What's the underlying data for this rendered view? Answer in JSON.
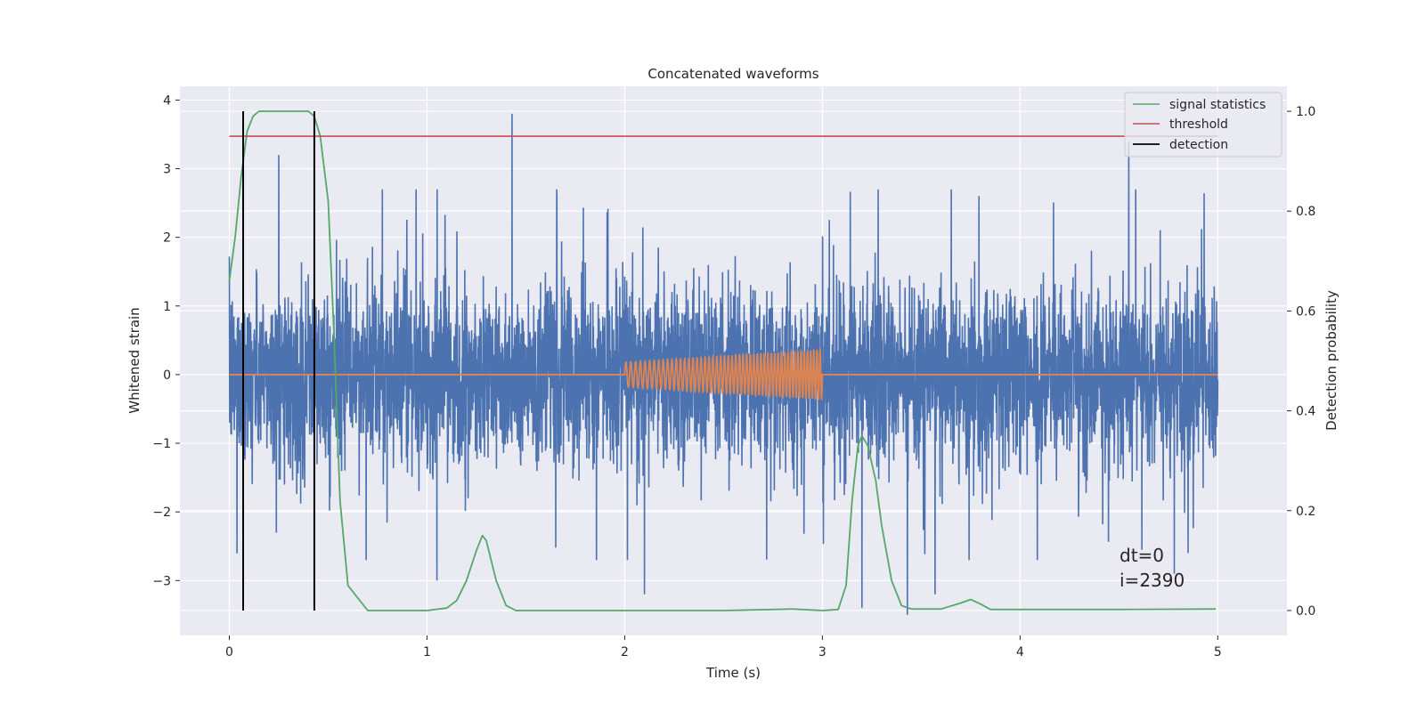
{
  "chart_data": {
    "type": "line",
    "title": "Concatenated waveforms",
    "xlabel": "Time (s)",
    "ylabel": "Whitened strain",
    "y2label": "Detection probability",
    "xlim": [
      -0.25,
      5.35
    ],
    "ylim": [
      -3.8,
      4.2
    ],
    "y2lim": [
      -0.05,
      1.05
    ],
    "xticks": [
      0,
      1,
      2,
      3,
      4,
      5
    ],
    "yticks": [
      -3,
      -2,
      -1,
      0,
      1,
      2,
      3,
      4
    ],
    "y2ticks": [
      0.0,
      0.2,
      0.4,
      0.6,
      0.8,
      1.0
    ],
    "ytick_labels": [
      "−3",
      "−2",
      "−1",
      "0",
      "1",
      "2",
      "3",
      "4"
    ],
    "y2tick_labels": [
      "0.0",
      "0.2",
      "0.4",
      "0.6",
      "0.8",
      "1.0"
    ],
    "grid": true,
    "legend_position": "top-right",
    "colors": {
      "strain": "#4c72b0",
      "waveform": "#dd8452",
      "signal_statistics": "#55a868",
      "threshold": "#c44e52",
      "detection": "#000000",
      "background": "#eaeaf2"
    },
    "series": [
      {
        "name": "strain",
        "axis": "left",
        "x_range": [
          0,
          5
        ],
        "typical_amplitude": 1.0,
        "notable_peaks": [
          [
            0.07,
            2.8
          ],
          [
            0.25,
            3.2
          ],
          [
            1.43,
            3.8
          ],
          [
            1.05,
            -3.0
          ],
          [
            2.1,
            -3.2
          ],
          [
            3.2,
            -3.4
          ],
          [
            3.43,
            -3.5
          ],
          [
            3.57,
            -3.2
          ],
          [
            4.55,
            3.4
          ],
          [
            4.78,
            -2.9
          ],
          [
            4.85,
            -2.6
          ]
        ]
      },
      {
        "name": "waveform",
        "axis": "left",
        "x": [
          0,
          2,
          2.5,
          3,
          3.01,
          5
        ],
        "envelope": [
          0,
          0.18,
          0.25,
          0.36,
          0,
          0
        ]
      },
      {
        "name": "signal statistics",
        "axis": "right",
        "x": [
          0,
          0.03,
          0.06,
          0.09,
          0.12,
          0.15,
          0.2,
          0.3,
          0.4,
          0.43,
          0.46,
          0.5,
          0.53,
          0.56,
          0.6,
          0.7,
          1.0,
          1.1,
          1.15,
          1.2,
          1.25,
          1.28,
          1.3,
          1.35,
          1.4,
          1.45,
          1.5,
          2.0,
          2.5,
          2.85,
          3.0,
          3.08,
          3.12,
          3.15,
          3.18,
          3.2,
          3.23,
          3.27,
          3.3,
          3.35,
          3.4,
          3.45,
          3.6,
          3.7,
          3.75,
          3.8,
          3.85,
          4.0,
          4.5,
          4.99
        ],
        "values": [
          0.66,
          0.75,
          0.87,
          0.96,
          0.99,
          1.0,
          1.0,
          1.0,
          1.0,
          0.99,
          0.95,
          0.82,
          0.55,
          0.22,
          0.05,
          0.0,
          0.0,
          0.005,
          0.02,
          0.06,
          0.12,
          0.15,
          0.14,
          0.06,
          0.01,
          0.0,
          0.0,
          0.0,
          0.0,
          0.003,
          0.0,
          0.002,
          0.05,
          0.22,
          0.33,
          0.35,
          0.33,
          0.26,
          0.17,
          0.06,
          0.01,
          0.003,
          0.003,
          0.015,
          0.022,
          0.013,
          0.002,
          0.002,
          0.002,
          0.003
        ]
      },
      {
        "name": "threshold",
        "axis": "right",
        "x": [
          0,
          5
        ],
        "values": [
          0.95,
          0.95
        ]
      },
      {
        "name": "detection",
        "axis": "right",
        "x": [
          0.07,
          0.43
        ],
        "range": [
          0.0,
          1.0
        ]
      }
    ],
    "legend": [
      "signal statistics",
      "threshold",
      "detection"
    ],
    "annotations": [
      "dt=0",
      "i=2390"
    ]
  }
}
